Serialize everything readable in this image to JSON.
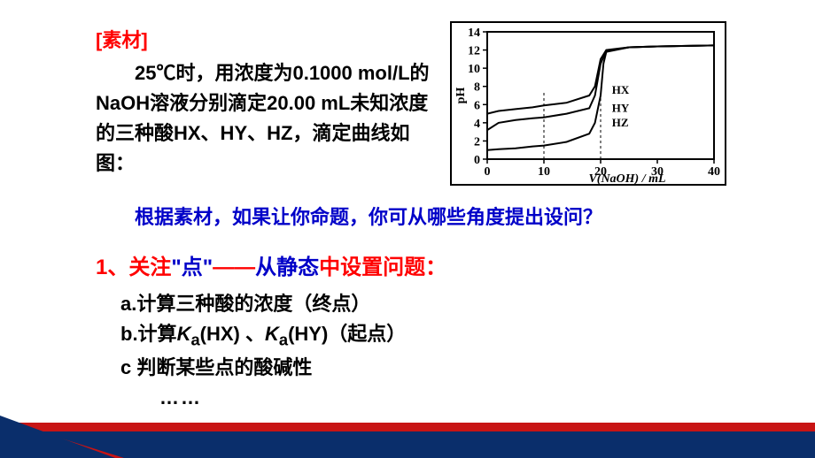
{
  "material": {
    "label": "[素材]",
    "body": "25℃时，用浓度为0.1000 mol/L的NaOH溶液分别滴定20.00 mL未知浓度的三种酸HX、HY、HZ，滴定曲线如图："
  },
  "question": "根据素材，如果让你命题，你可从哪些角度提出设问？",
  "point": {
    "num": "1、",
    "focus": "关注",
    "dot": "\"点\"",
    "dash": "——",
    "static_prefix": "从",
    "static_word": "静态",
    "setq": "中设置问题："
  },
  "subitems": {
    "a": "a.计算三种酸的浓度（终点）",
    "b_prefix": "b.计算",
    "b_k1": "K",
    "b_sub1": "a",
    "b_hx": "(HX) 、",
    "b_k2": "K",
    "b_sub2": "a",
    "b_hy": "(HY)（起点）",
    "c": "c 判断某些点的酸碱性",
    "dots": "……"
  },
  "chart": {
    "ylabel": "pH",
    "xlabel": "V(NaOH) / mL",
    "xlim": [
      0,
      40
    ],
    "ylim": [
      0,
      14
    ],
    "xticks": [
      0,
      10,
      20,
      30,
      40
    ],
    "yticks": [
      0,
      2,
      4,
      6,
      8,
      10,
      12,
      14
    ],
    "axis_color": "#000000",
    "background_color": "#ffffff",
    "line_color": "#000000",
    "line_width": 2,
    "dash_color": "#000000",
    "series": [
      {
        "name": "HX",
        "label_pos": [
          22,
          7.2
        ],
        "points": [
          [
            0,
            5.0
          ],
          [
            2,
            5.3
          ],
          [
            5,
            5.5
          ],
          [
            8,
            5.7
          ],
          [
            10,
            5.9
          ],
          [
            14,
            6.2
          ],
          [
            18,
            7.0
          ],
          [
            19,
            8.0
          ],
          [
            20,
            11.0
          ],
          [
            21,
            12.0
          ],
          [
            25,
            12.3
          ],
          [
            30,
            12.4
          ],
          [
            40,
            12.5
          ]
        ]
      },
      {
        "name": "HY",
        "label_pos": [
          22,
          5.2
        ],
        "points": [
          [
            0,
            3.2
          ],
          [
            2,
            4.0
          ],
          [
            5,
            4.3
          ],
          [
            8,
            4.5
          ],
          [
            10,
            4.6
          ],
          [
            14,
            5.0
          ],
          [
            18,
            5.6
          ],
          [
            19,
            7.0
          ],
          [
            20,
            10.5
          ],
          [
            21,
            11.9
          ],
          [
            25,
            12.3
          ],
          [
            30,
            12.4
          ],
          [
            40,
            12.5
          ]
        ]
      },
      {
        "name": "HZ",
        "label_pos": [
          22,
          3.6
        ],
        "points": [
          [
            0,
            1.0
          ],
          [
            2,
            1.1
          ],
          [
            5,
            1.2
          ],
          [
            8,
            1.4
          ],
          [
            10,
            1.5
          ],
          [
            14,
            1.9
          ],
          [
            18,
            2.8
          ],
          [
            19,
            4.0
          ],
          [
            20,
            7.0
          ],
          [
            20.5,
            10.5
          ],
          [
            21,
            11.8
          ],
          [
            25,
            12.3
          ],
          [
            30,
            12.4
          ],
          [
            40,
            12.5
          ]
        ]
      }
    ],
    "dashed_verticals": [
      10,
      20
    ]
  }
}
